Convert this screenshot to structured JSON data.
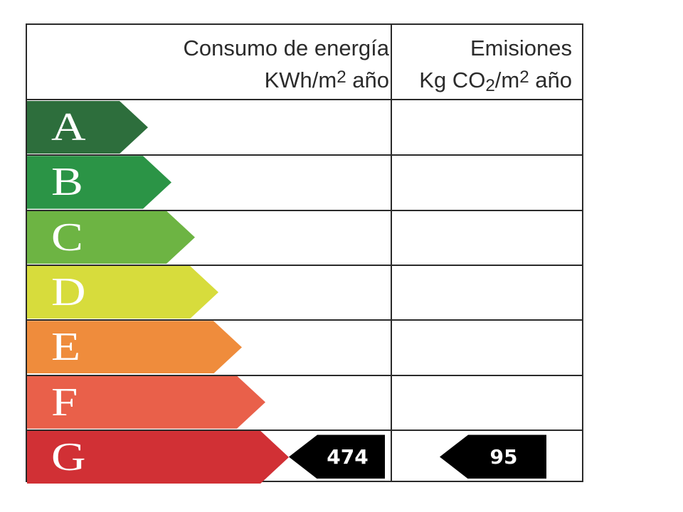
{
  "header": {
    "energy": {
      "line1": "Consumo de energía",
      "unit_pre": "KWh/m",
      "unit_sup": "2",
      "unit_post": " año"
    },
    "emissions": {
      "line1": "Emisiones",
      "unit_pre": "Kg CO",
      "unit_sub": "2",
      "unit_mid": "/m",
      "unit_sup": "2",
      "unit_post": " año"
    }
  },
  "ratings": [
    {
      "letter": "A",
      "color": "#2d6e3c"
    },
    {
      "letter": "B",
      "color": "#2b9446"
    },
    {
      "letter": "C",
      "color": "#6db443"
    },
    {
      "letter": "D",
      "color": "#d7dc3c"
    },
    {
      "letter": "E",
      "color": "#ef8c3c"
    },
    {
      "letter": "F",
      "color": "#e9604a"
    },
    {
      "letter": "G",
      "color": "#d13035"
    }
  ],
  "current": {
    "rating": "G",
    "energy_value": "474",
    "emissions_value": "95"
  }
}
